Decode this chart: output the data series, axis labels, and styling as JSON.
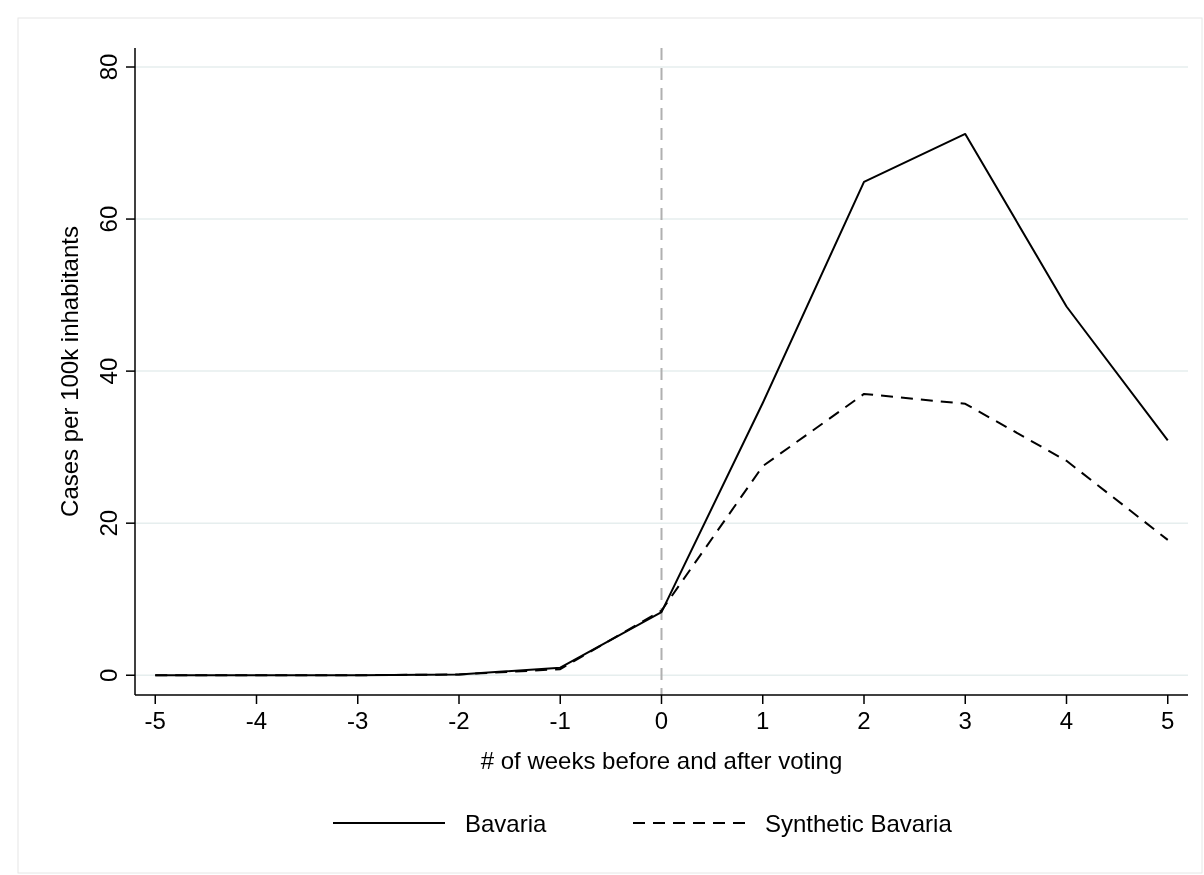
{
  "chart_data": {
    "type": "line",
    "xlabel": "# of weeks before and after voting",
    "ylabel": "Cases per 100k inhabitants",
    "x": [
      -5,
      -4,
      -3,
      -2,
      -1,
      0,
      1,
      2,
      3,
      4,
      5
    ],
    "series": [
      {
        "name": "Bavaria",
        "color": "#000000",
        "line_style": "solid",
        "values": [
          0,
          0,
          0,
          0.1,
          1,
          8.3,
          35.8,
          64.9,
          71.2,
          48.5,
          30.9
        ]
      },
      {
        "name": "Synthetic Bavaria",
        "color": "#000000",
        "line_style": "dashed",
        "values": [
          0,
          0,
          0,
          0.1,
          0.8,
          8.5,
          27.5,
          37,
          35.7,
          28.2,
          17.8
        ]
      }
    ],
    "xlim": [
      -5.2,
      5.2
    ],
    "xticks": [
      -5,
      -4,
      -3,
      -2,
      -1,
      0,
      1,
      2,
      3,
      4,
      5
    ],
    "ylim": [
      -2.6,
      82.5
    ],
    "yticks": [
      0,
      20,
      40,
      60,
      80
    ],
    "grid": "y",
    "legend": "bottom",
    "marker": "none",
    "ref_lines": [
      {
        "axis": "x",
        "value": 0,
        "color": "#b0b0b0",
        "line_style": "dashed"
      }
    ]
  }
}
